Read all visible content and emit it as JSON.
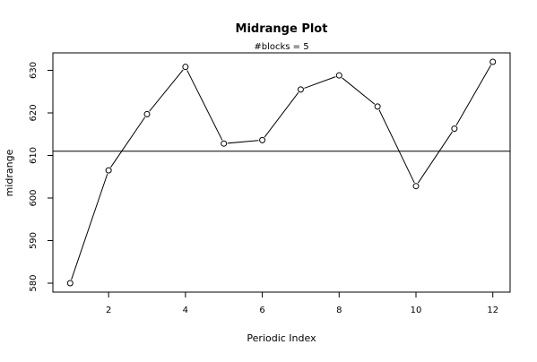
{
  "chart_data": {
    "type": "line",
    "title": "Midrange Plot",
    "subtitle": "#blocks =  5",
    "xlabel": "Periodic Index",
    "ylabel": "midrange",
    "x": [
      1,
      2,
      3,
      4,
      5,
      6,
      7,
      8,
      9,
      10,
      11,
      12
    ],
    "series": [
      {
        "values": [
          580.0,
          606.5,
          619.7,
          630.8,
          612.8,
          613.6,
          625.5,
          628.8,
          621.5,
          602.8,
          616.3,
          632.0
        ]
      }
    ],
    "reference_line": 611,
    "xlim": [
      0.55,
      12.45
    ],
    "ylim": [
      577.9,
      634.1
    ],
    "xticks": [
      2,
      4,
      6,
      8,
      10,
      12
    ],
    "yticks": [
      580,
      590,
      600,
      610,
      620,
      630
    ],
    "grid": false,
    "legend": "none",
    "colors": {
      "line": "#000000",
      "marker": "#000000",
      "reference_line": "#000000",
      "axes": "#000000"
    }
  }
}
